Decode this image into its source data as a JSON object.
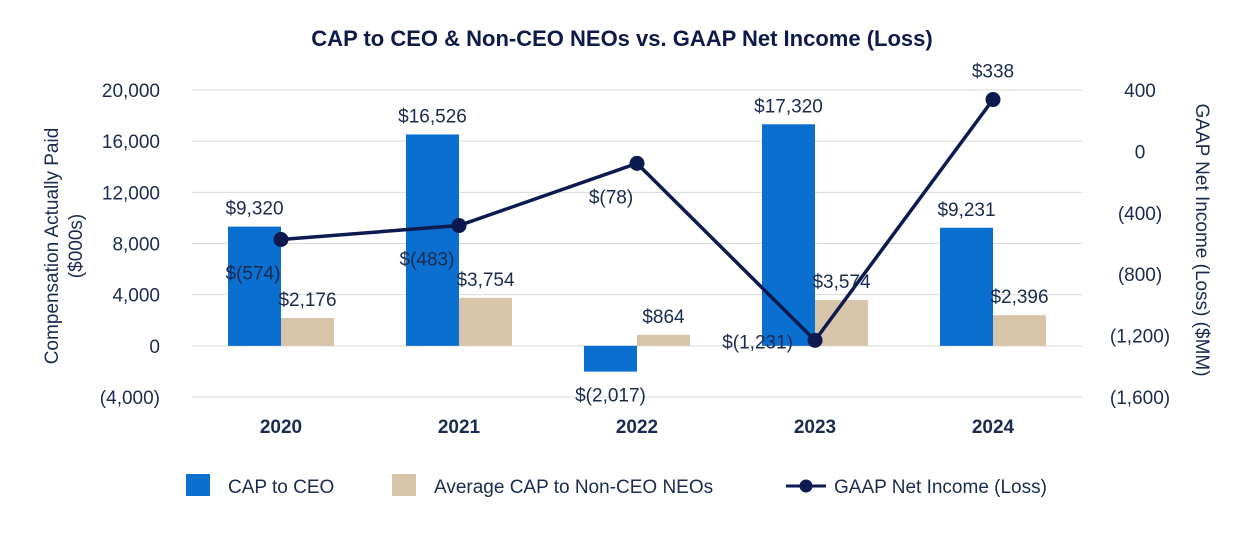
{
  "chart_data": {
    "type": "bar",
    "title": "CAP to CEO & Non-CEO NEOs vs. GAAP Net Income (Loss)",
    "categories": [
      "2020",
      "2021",
      "2022",
      "2023",
      "2024"
    ],
    "ylabel": [
      "Compensation Actually Paid",
      "($000s)"
    ],
    "y2label": "GAAP Net Income (Loss) ($MM)",
    "ylim": [
      -4000,
      20000
    ],
    "yticks": [
      -4000,
      0,
      4000,
      8000,
      12000,
      16000,
      20000
    ],
    "ytick_labels": [
      "(4,000)",
      "0",
      "4,000",
      "8,000",
      "12,000",
      "16,000",
      "20,000"
    ],
    "y2lim": [
      -1600,
      400
    ],
    "y2ticks": [
      -1600,
      -1200,
      -800,
      -400,
      0,
      400
    ],
    "y2tick_labels": [
      "(1,600)",
      "(1,200)",
      "(800)",
      "(400)",
      "0",
      "400"
    ],
    "series": [
      {
        "name": "CAP to CEO",
        "kind": "bar",
        "axis": "left",
        "color": "#0a6fcf",
        "values": [
          9320,
          16526,
          -2017,
          17320,
          9231
        ],
        "labels": [
          "$9,320",
          "$16,526",
          "$(2,017)",
          "$17,320",
          "$9,231"
        ]
      },
      {
        "name": "Average CAP to Non-CEO NEOs",
        "kind": "bar",
        "axis": "left",
        "color": "#d8c4a9",
        "values": [
          2176,
          3754,
          864,
          3574,
          2396
        ],
        "labels": [
          "$2,176",
          "$3,754",
          "$864",
          "$3,574",
          "$2,396"
        ]
      },
      {
        "name": "GAAP Net Income (Loss)",
        "kind": "line",
        "axis": "right",
        "color": "#0c1a4f",
        "values": [
          -574,
          -483,
          -78,
          -1231,
          338
        ],
        "labels": [
          "$(574)",
          "$(483)",
          "$(78)",
          "$(1,231)",
          "$338"
        ]
      }
    ],
    "legend": {
      "position": "bottom",
      "items": [
        "CAP to CEO",
        "Average CAP to Non-CEO NEOs",
        "GAAP Net Income (Loss)"
      ]
    },
    "grid": true
  }
}
